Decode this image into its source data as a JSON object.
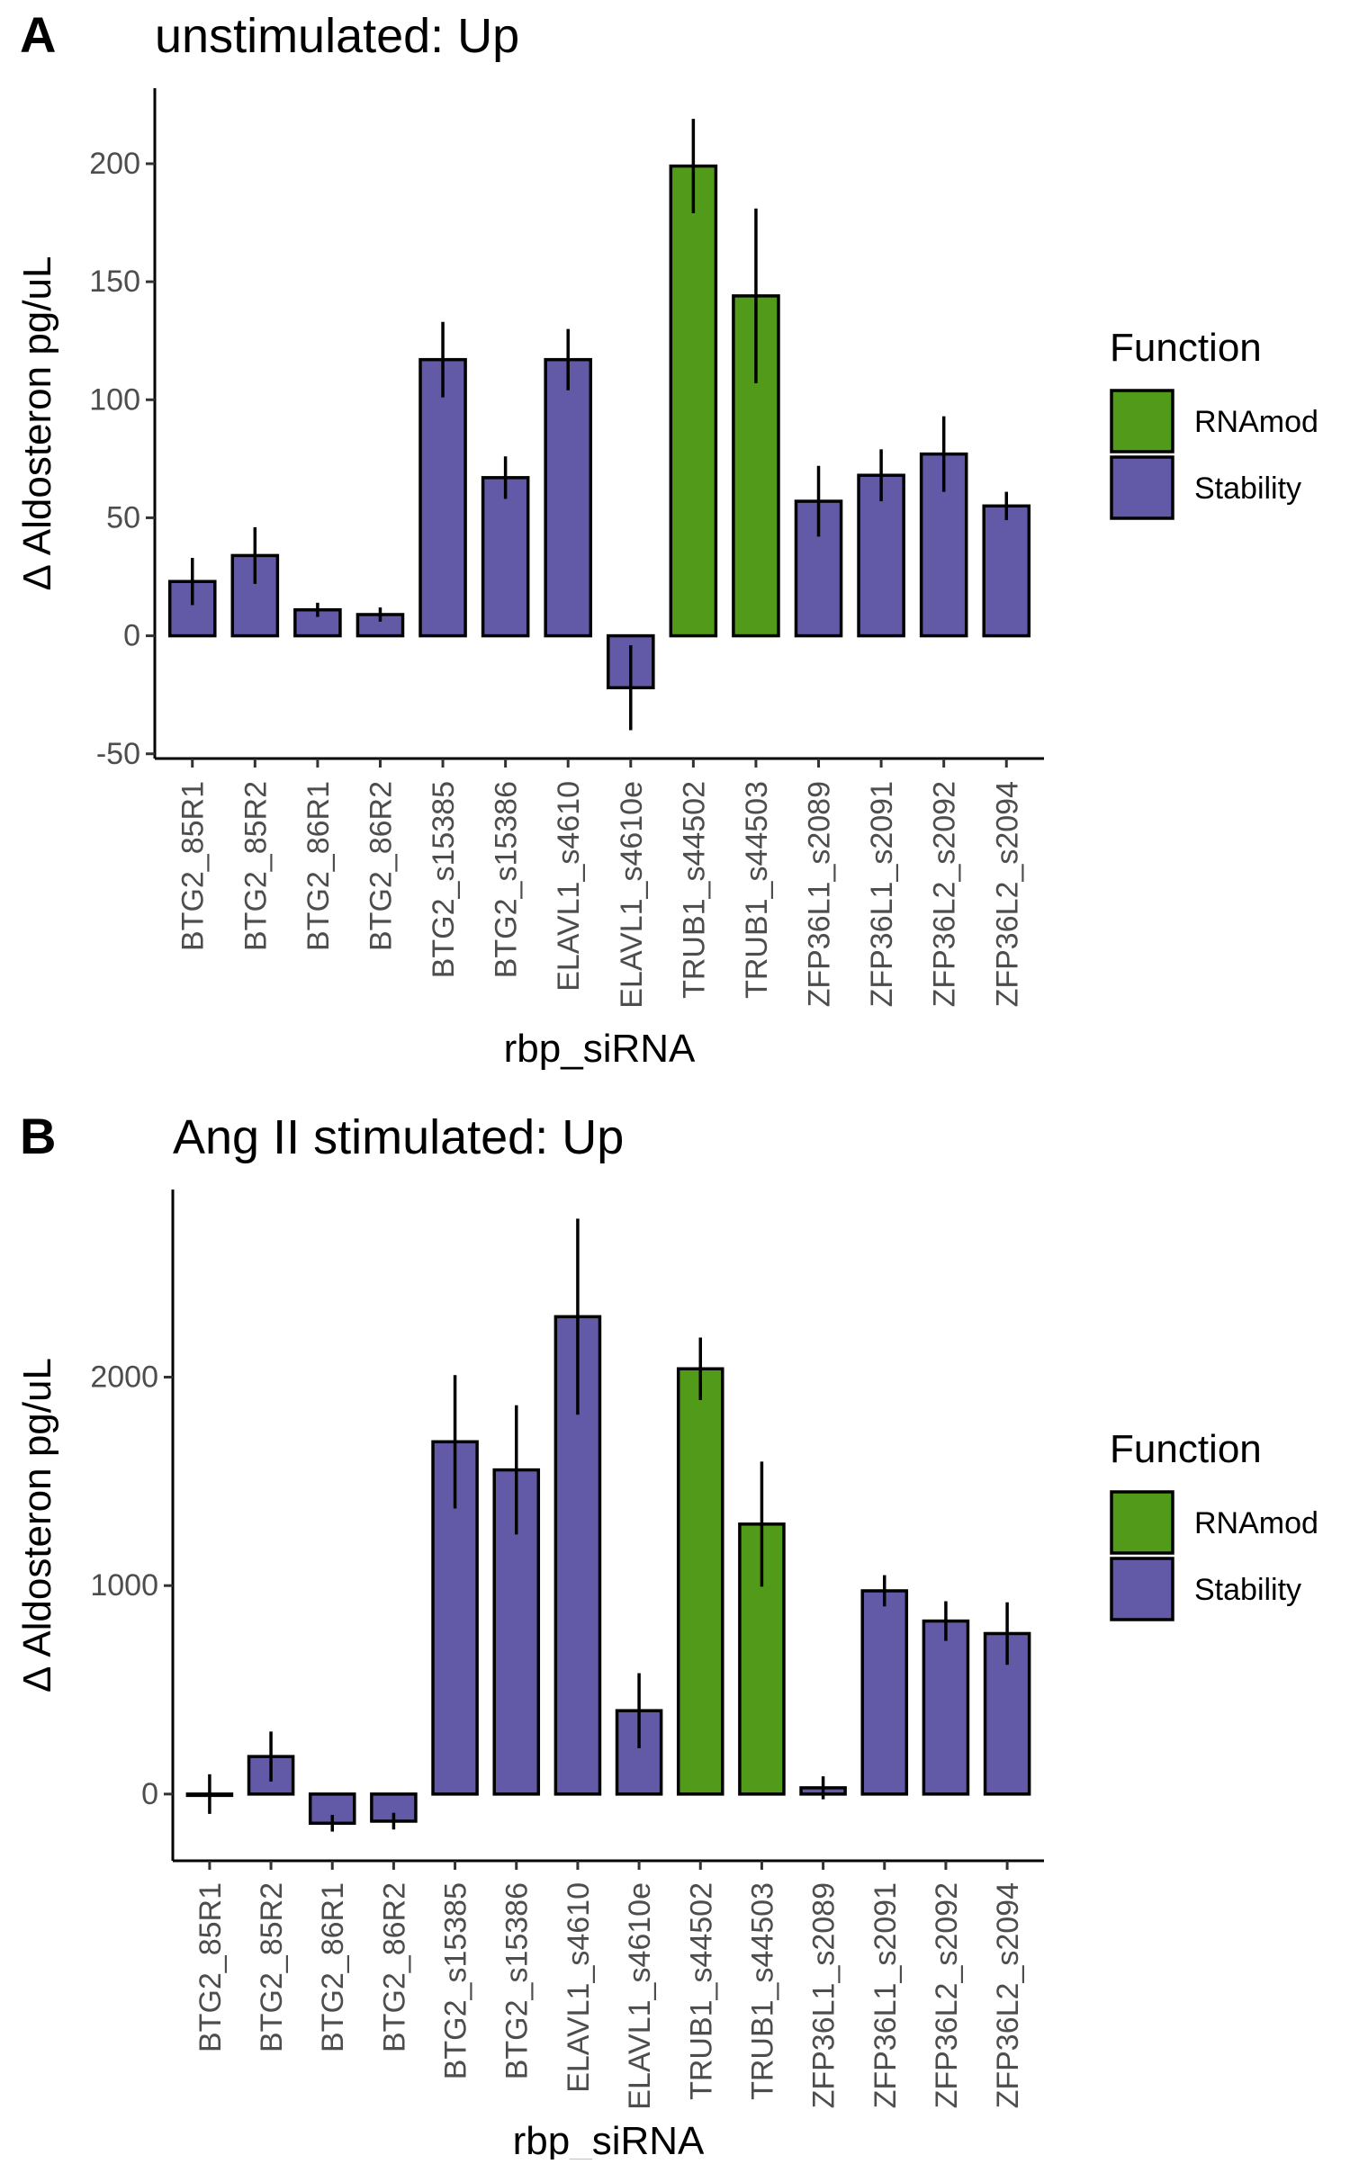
{
  "colors": {
    "RNAmod": "#529B1A",
    "Stability": "#625AA6",
    "stroke": "#000000",
    "text": "#4d4d4d"
  },
  "chart_data": [
    {
      "panel_label": "A",
      "type": "bar",
      "title": "unstimulated: Up",
      "xlabel": "rbp_siRNA",
      "ylabel": "Δ Aldosteron pg/uL",
      "ylim": [
        -52,
        232
      ],
      "yticks": [
        -50,
        0,
        50,
        100,
        150,
        200
      ],
      "ytick_labels": [
        "-50",
        "0",
        "50",
        "100",
        "150",
        "200"
      ],
      "categories": [
        "BTG2_85R1",
        "BTG2_85R2",
        "BTG2_86R1",
        "BTG2_86R2",
        "BTG2_s15385",
        "BTG2_s15386",
        "ELAVL1_s4610",
        "ELAVL1_s4610e",
        "TRUB1_s44502",
        "TRUB1_s44503",
        "ZFP36L1_s2089",
        "ZFP36L1_s2091",
        "ZFP36L2_s2092",
        "ZFP36L2_s2094"
      ],
      "values": [
        23,
        34,
        11,
        9,
        117,
        67,
        117,
        -22,
        199,
        144,
        57,
        68,
        77,
        55
      ],
      "errors": [
        10,
        12,
        3,
        3,
        16,
        9,
        13,
        18,
        20,
        37,
        15,
        11,
        16,
        6
      ],
      "function": [
        "Stability",
        "Stability",
        "Stability",
        "Stability",
        "Stability",
        "Stability",
        "Stability",
        "Stability",
        "RNAmod",
        "RNAmod",
        "Stability",
        "Stability",
        "Stability",
        "Stability"
      ],
      "legend": {
        "title": "Function",
        "position": "right",
        "entries": [
          {
            "label": "RNAmod",
            "color": "#529B1A"
          },
          {
            "label": "Stability",
            "color": "#625AA6"
          }
        ]
      },
      "grid": false
    },
    {
      "panel_label": "B",
      "type": "bar",
      "title": "Ang II stimulated: Up",
      "xlabel": "rbp_siRNA",
      "ylabel": "Δ Aldosteron pg/uL",
      "ylim": [
        -320,
        2900
      ],
      "yticks": [
        0,
        1000,
        2000
      ],
      "ytick_labels": [
        "0",
        "1000",
        "2000"
      ],
      "categories": [
        "BTG2_85R1",
        "BTG2_85R2",
        "BTG2_86R1",
        "BTG2_86R2",
        "BTG2_s15385",
        "BTG2_s15386",
        "ELAVL1_s4610",
        "ELAVL1_s4610e",
        "TRUB1_s44502",
        "TRUB1_s44503",
        "ZFP36L1_s2089",
        "ZFP36L1_s2091",
        "ZFP36L2_s2092",
        "ZFP36L2_s2094"
      ],
      "values": [
        0,
        180,
        -140,
        -130,
        1690,
        1555,
        2290,
        400,
        2040,
        1295,
        30,
        975,
        830,
        770
      ],
      "errors": [
        95,
        120,
        40,
        40,
        320,
        310,
        470,
        180,
        150,
        300,
        55,
        75,
        95,
        150
      ],
      "function": [
        "Stability",
        "Stability",
        "Stability",
        "Stability",
        "Stability",
        "Stability",
        "Stability",
        "Stability",
        "RNAmod",
        "RNAmod",
        "Stability",
        "Stability",
        "Stability",
        "Stability"
      ],
      "legend": {
        "title": "Function",
        "position": "right",
        "entries": [
          {
            "label": "RNAmod",
            "color": "#529B1A"
          },
          {
            "label": "Stability",
            "color": "#625AA6"
          }
        ]
      },
      "grid": false
    }
  ]
}
